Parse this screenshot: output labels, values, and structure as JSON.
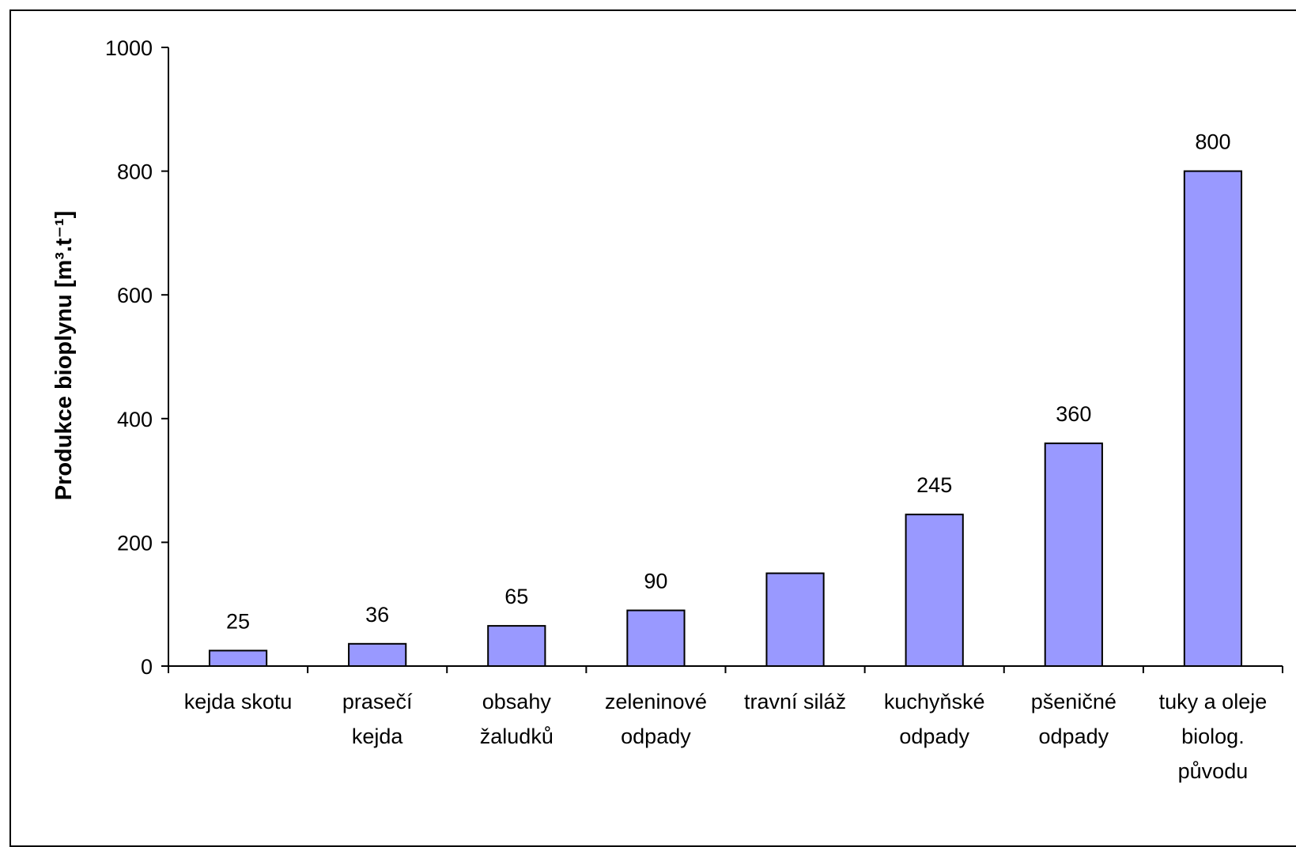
{
  "chart_data": {
    "type": "bar",
    "title": "",
    "xlabel": "",
    "ylabel": "Produkce bioplynu [m³.t⁻¹]",
    "ylim": [
      0,
      1000
    ],
    "yticks": [
      "0",
      "200",
      "400",
      "600",
      "800",
      "1000"
    ],
    "categories": [
      [
        "kejda skotu"
      ],
      [
        "prasečí",
        "kejda"
      ],
      [
        "obsahy",
        "žaludků"
      ],
      [
        "zeleninové",
        "odpady"
      ],
      [
        "travní siláž"
      ],
      [
        "kuchyňské",
        "odpady"
      ],
      [
        "pšeničné",
        "odpady"
      ],
      [
        "tuky a oleje",
        "biolog.",
        "původu"
      ]
    ],
    "series": [
      {
        "values": [
          25,
          36,
          65,
          90,
          150,
          245,
          360,
          800
        ]
      }
    ],
    "data_labels": [
      "25",
      "36",
      "65",
      "90",
      "",
      "245",
      "360",
      "800"
    ],
    "bar_color": "#9999ff",
    "bar_stroke": "#000000",
    "grid": false,
    "legend": "none"
  }
}
